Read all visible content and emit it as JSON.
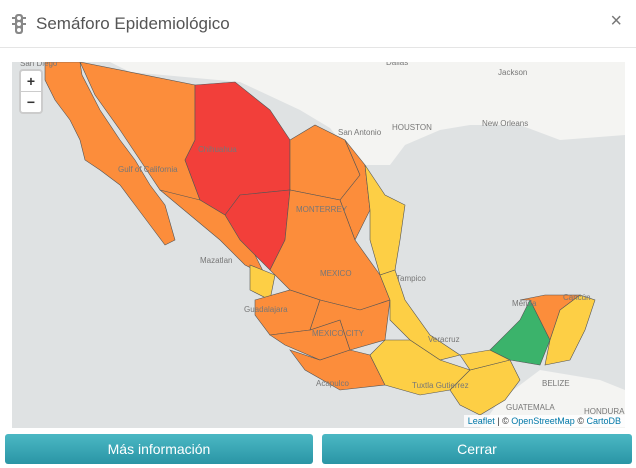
{
  "header": {
    "title": "Semáforo Epidemiológico",
    "close": "×"
  },
  "zoom": {
    "in": "+",
    "out": "−"
  },
  "map_labels": [
    "San Diego",
    "Dallas",
    "Jackson",
    "HOUSTON",
    "New Orleans",
    "San Antonio",
    "Chihuahua",
    "Gulf of California",
    "MONTERREY",
    "Mazatlan",
    "Tampico",
    "MEXICO",
    "Guadalajara",
    "MEXICO CITY",
    "Veracruz",
    "Acapulco",
    "Tuxtla Gutierrez",
    "Mérida",
    "Cancún",
    "BELIZE",
    "GUATEMALA",
    "HONDURAS"
  ],
  "attribution": {
    "leaflet": "Leaflet",
    "sep": "| ©",
    "osm": "OpenStreetMap",
    "copy": "©",
    "carto": "CartoDB"
  },
  "buttons": [
    "Más información",
    "Cerrar"
  ]
}
